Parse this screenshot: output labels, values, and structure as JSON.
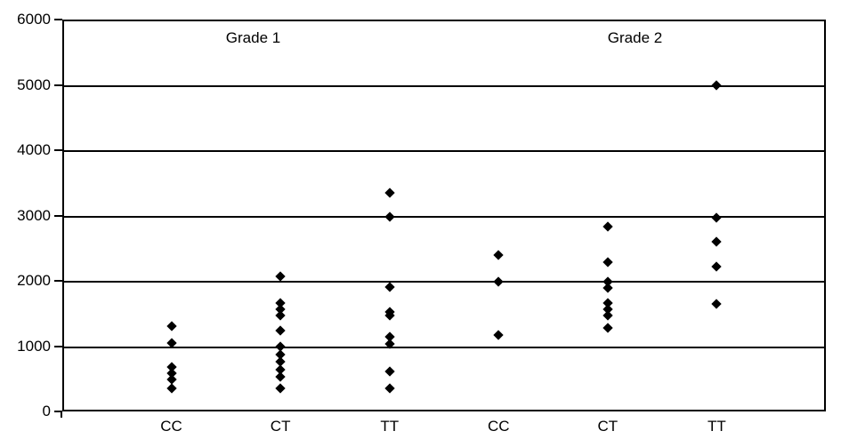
{
  "figure": {
    "background_color": "#ffffff",
    "axis_color": "#000000",
    "marker_color": "#000000",
    "marker_shape": "diamond"
  },
  "chart_data": {
    "type": "scatter",
    "title": "",
    "xlabel": "",
    "ylabel": "",
    "ylim": [
      0,
      6000
    ],
    "ytick_values": [
      0,
      1000,
      2000,
      3000,
      4000,
      5000,
      6000
    ],
    "ytick_labels": [
      "0",
      "1000",
      "2000",
      "3000",
      "4000",
      "5000",
      "6000"
    ],
    "grid": true,
    "legend": "none",
    "group_annotations": [
      {
        "label": "Grade 1",
        "x_fraction": 0.25
      },
      {
        "label": "Grade 2",
        "x_fraction": 0.75
      }
    ],
    "categories": [
      "CC",
      "CT",
      "TT",
      "CC",
      "CT",
      "TT"
    ],
    "series": [
      {
        "group": "Grade 1",
        "category": "CC",
        "values": [
          1300,
          1050,
          680,
          585,
          490,
          350
        ]
      },
      {
        "group": "Grade 1",
        "category": "CT",
        "values": [
          2070,
          1660,
          1560,
          1470,
          1240,
          990,
          870,
          760,
          640,
          530,
          350
        ]
      },
      {
        "group": "Grade 1",
        "category": "TT",
        "values": [
          3350,
          2980,
          1900,
          1530,
          1470,
          1140,
          1030,
          610,
          350
        ]
      },
      {
        "group": "Grade 2",
        "category": "CC",
        "values": [
          2400,
          1990,
          1170
        ]
      },
      {
        "group": "Grade 2",
        "category": "CT",
        "values": [
          2830,
          2290,
          1990,
          1890,
          1660,
          1570,
          1470,
          1280
        ]
      },
      {
        "group": "Grade 2",
        "category": "TT",
        "values": [
          5000,
          2970,
          2600,
          2220,
          1650
        ]
      }
    ]
  }
}
